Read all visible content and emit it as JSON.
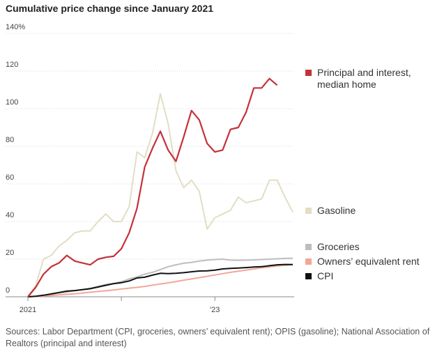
{
  "chart_data": {
    "type": "line",
    "title": "Cumulative price change since January 2021",
    "categories": [
      "2021",
      null,
      null,
      null,
      null,
      null,
      null,
      null,
      null,
      null,
      null,
      null,
      null,
      null,
      null,
      null,
      null,
      null,
      null,
      null,
      null,
      null,
      null,
      null,
      "'23",
      null,
      null,
      null,
      null,
      null,
      null,
      null,
      null,
      null,
      null
    ],
    "ylim": [
      0,
      140
    ],
    "yticks": [
      0,
      20,
      40,
      60,
      80,
      100,
      120,
      {
        "value": 140,
        "label": "140%"
      }
    ],
    "grid": true,
    "series": [
      {
        "name": "Principal and interest, median home",
        "color": "#c4313a",
        "values": [
          0,
          5,
          12,
          16,
          18,
          22,
          19,
          18,
          17,
          20,
          21,
          21.5,
          25.5,
          34,
          47,
          69,
          79,
          88,
          78,
          72,
          85,
          99,
          94,
          81.5,
          77,
          78,
          89,
          90,
          98,
          111,
          111,
          116,
          112.5,
          null,
          null
        ]
      },
      {
        "name": "Gasoline",
        "color": "#e2dec4",
        "values": [
          0,
          6,
          20,
          22,
          27,
          30,
          34,
          35,
          35,
          40,
          44,
          40,
          40,
          48,
          77,
          74,
          87,
          108,
          92,
          67,
          58,
          62,
          56,
          36,
          42,
          44,
          46,
          53,
          50,
          51,
          52,
          62,
          62,
          53,
          45
        ]
      },
      {
        "name": "Groceries",
        "color": "#bdbdbd",
        "values": [
          0,
          0.3,
          0.8,
          1.3,
          2,
          2.5,
          3.3,
          3.8,
          4.5,
          5.5,
          6.5,
          7,
          8,
          9.5,
          10.5,
          12,
          13,
          14.5,
          16,
          17,
          17.8,
          18.3,
          19,
          19.5,
          19.8,
          20,
          19.5,
          19.4,
          19.5,
          19.6,
          19.8,
          20,
          20.2,
          20.4,
          20.5
        ]
      },
      {
        "name": "Owners’ equivalent rent",
        "color": "#f2a797",
        "values": [
          0,
          0.2,
          0.4,
          0.7,
          1,
          1.3,
          1.6,
          2,
          2.4,
          2.8,
          3.2,
          3.6,
          4.1,
          4.6,
          5,
          5.5,
          6.2,
          6.8,
          7.4,
          8.1,
          8.8,
          9.5,
          10.2,
          10.9,
          11.6,
          12.3,
          13,
          13.6,
          14.2,
          14.8,
          15.4,
          15.9,
          16.4,
          16.8,
          17.2
        ]
      },
      {
        "name": "CPI",
        "color": "#111111",
        "values": [
          0,
          0.3,
          0.8,
          1.5,
          2.3,
          3,
          3.3,
          3.8,
          4.3,
          5.2,
          6.1,
          7,
          7.5,
          8.4,
          10,
          10.4,
          11.5,
          12.5,
          12.3,
          12.5,
          12.8,
          13.3,
          13.7,
          13.8,
          14.2,
          14.8,
          15.1,
          15.3,
          15.5,
          15.8,
          16,
          16.5,
          17,
          17.2,
          17.1
        ]
      }
    ],
    "source": "Sources: Labor Department (CPI, groceries, owners’ equivalent rent); OPIS (gasoline); National Association of Realtors (principal and interest)"
  }
}
